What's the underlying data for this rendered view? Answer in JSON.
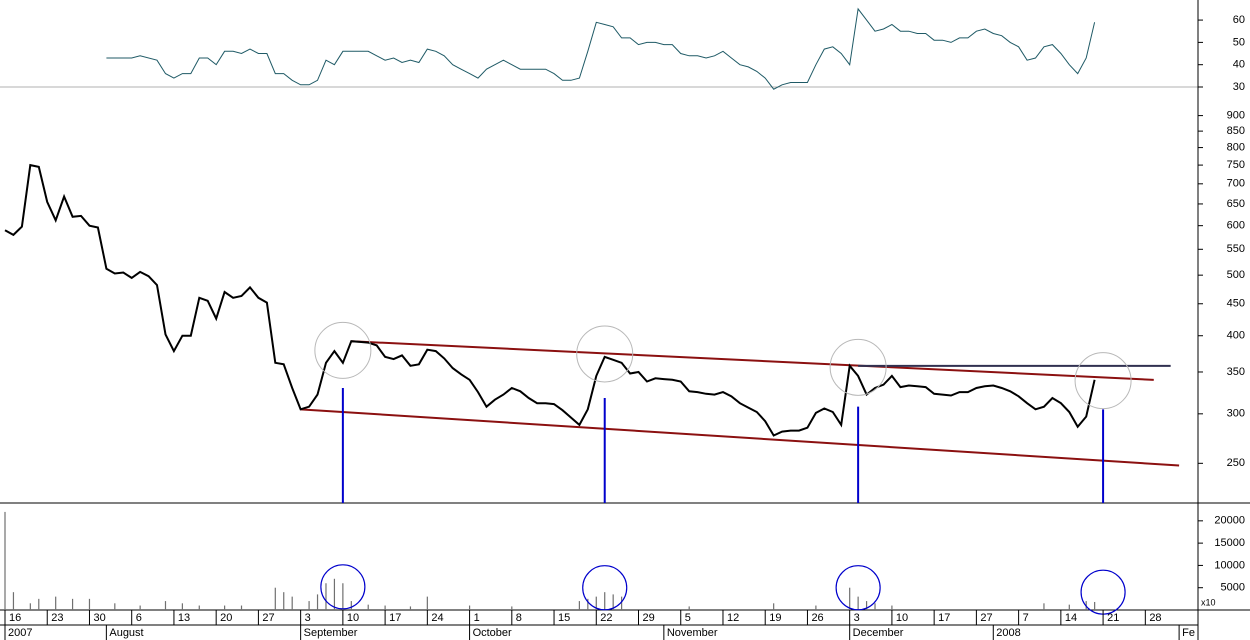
{
  "chart_data": [
    {
      "type": "line",
      "color": "#1f5a66",
      "xlim": [
        "2007-07-16",
        "2008-02-05"
      ],
      "ylim": [
        30,
        69
      ],
      "yticks": [
        30,
        40,
        50,
        60
      ],
      "x": [
        "2007-08-01",
        "2007-08-06",
        "2007-08-07",
        "2007-08-09",
        "2007-08-10",
        "2007-08-13",
        "2007-08-14",
        "2007-08-15",
        "2007-08-16",
        "2007-08-17",
        "2007-08-20",
        "2007-08-21",
        "2007-08-22",
        "2007-08-23",
        "2007-08-24",
        "2007-08-27",
        "2007-08-28",
        "2007-08-29",
        "2007-08-30",
        "2007-08-31",
        "2007-09-03",
        "2007-09-04",
        "2007-09-05",
        "2007-09-06",
        "2007-09-07",
        "2007-09-10",
        "2007-09-11",
        "2007-09-13",
        "2007-09-14",
        "2007-09-17",
        "2007-09-18",
        "2007-09-19",
        "2007-09-20",
        "2007-09-21",
        "2007-09-24",
        "2007-09-25",
        "2007-09-26",
        "2007-09-27",
        "2007-09-28",
        "2007-10-01",
        "2007-10-02",
        "2007-10-03",
        "2007-10-04",
        "2007-10-05",
        "2007-10-08",
        "2007-10-09",
        "2007-10-11",
        "2007-10-12",
        "2007-10-15",
        "2007-10-16",
        "2007-10-17",
        "2007-10-18",
        "2007-10-19",
        "2007-10-22",
        "2007-10-23",
        "2007-10-24",
        "2007-10-25",
        "2007-10-26",
        "2007-10-29",
        "2007-10-30",
        "2007-10-31",
        "2007-11-01",
        "2007-11-02",
        "2007-11-05",
        "2007-11-06",
        "2007-11-07",
        "2007-11-08",
        "2007-11-09",
        "2007-11-12",
        "2007-11-13",
        "2007-11-14",
        "2007-11-15",
        "2007-11-16",
        "2007-11-19",
        "2007-11-20",
        "2007-11-21",
        "2007-11-22",
        "2007-11-23",
        "2007-11-26",
        "2007-11-27",
        "2007-11-28",
        "2007-11-29",
        "2007-11-30",
        "2007-12-03",
        "2007-12-04",
        "2007-12-05",
        "2007-12-06",
        "2007-12-07",
        "2007-12-10",
        "2007-12-11",
        "2007-12-12",
        "2007-12-13",
        "2007-12-14",
        "2007-12-17",
        "2007-12-18",
        "2007-12-19",
        "2007-12-20",
        "2007-12-21",
        "2007-12-27",
        "2007-12-28",
        "2008-01-02",
        "2008-01-03",
        "2008-01-04",
        "2008-01-07",
        "2008-01-08",
        "2008-01-09",
        "2008-01-10",
        "2008-01-11",
        "2008-01-14",
        "2008-01-15",
        "2008-01-16",
        "2008-01-17",
        "2008-01-18"
      ],
      "values": [
        43,
        43,
        44,
        42,
        36,
        34,
        36,
        36,
        43,
        43,
        40,
        46,
        46,
        45,
        47,
        45,
        45,
        36,
        36,
        33,
        31,
        31,
        33,
        42,
        40,
        46,
        46,
        46,
        44,
        42,
        43,
        41,
        42,
        41,
        47,
        46,
        44,
        40,
        38,
        36,
        34,
        38,
        40,
        42,
        40,
        38,
        38,
        38,
        36,
        33,
        33,
        34,
        46,
        59,
        58,
        57,
        52,
        52,
        49,
        50,
        50,
        49,
        49,
        45,
        44,
        44,
        43,
        44,
        46,
        43,
        40,
        39,
        37,
        34,
        29,
        31,
        32,
        32,
        32,
        40,
        47,
        48,
        45,
        40,
        65,
        60,
        55,
        56,
        58,
        55,
        55,
        54,
        54,
        51,
        51,
        50,
        52,
        52,
        55,
        56,
        54,
        53,
        50,
        48,
        42,
        43,
        48,
        49,
        45,
        40,
        36,
        43,
        59
      ]
    },
    {
      "type": "line",
      "color": "#000000",
      "log_scale": true,
      "xlim": [
        "2007-07-16",
        "2008-02-05"
      ],
      "ylim": [
        216,
        1000
      ],
      "yticks": [
        250,
        300,
        350,
        400,
        450,
        500,
        550,
        600,
        650,
        700,
        750,
        800,
        850,
        900
      ],
      "x": [
        "2007-07-16",
        "2007-07-17",
        "2007-07-18",
        "2007-07-19",
        "2007-07-20",
        "2007-07-23",
        "2007-07-24",
        "2007-07-25",
        "2007-07-26",
        "2007-07-27",
        "2007-07-30",
        "2007-07-31",
        "2007-08-01",
        "2007-08-02",
        "2007-08-03",
        "2007-08-06",
        "2007-08-07",
        "2007-08-08",
        "2007-08-09",
        "2007-08-10",
        "2007-08-13",
        "2007-08-14",
        "2007-08-15",
        "2007-08-16",
        "2007-08-17",
        "2007-08-20",
        "2007-08-21",
        "2007-08-22",
        "2007-08-23",
        "2007-08-24",
        "2007-08-27",
        "2007-08-28",
        "2007-08-29",
        "2007-08-30",
        "2007-08-31",
        "2007-09-03",
        "2007-09-04",
        "2007-09-05",
        "2007-09-06",
        "2007-09-07",
        "2007-09-10",
        "2007-09-11",
        "2007-09-12",
        "2007-09-13",
        "2007-09-14",
        "2007-09-17",
        "2007-09-18",
        "2007-09-19",
        "2007-09-20",
        "2007-09-21",
        "2007-09-24",
        "2007-09-25",
        "2007-09-26",
        "2007-09-27",
        "2007-09-28",
        "2007-10-01",
        "2007-10-02",
        "2007-10-03",
        "2007-10-04",
        "2007-10-05",
        "2007-10-08",
        "2007-10-09",
        "2007-10-10",
        "2007-10-11",
        "2007-10-12",
        "2007-10-15",
        "2007-10-16",
        "2007-10-17",
        "2007-10-18",
        "2007-10-19",
        "2007-10-22",
        "2007-10-23",
        "2007-10-24",
        "2007-10-25",
        "2007-10-26",
        "2007-10-29",
        "2007-10-30",
        "2007-10-31",
        "2007-11-01",
        "2007-11-02",
        "2007-11-05",
        "2007-11-06",
        "2007-11-07",
        "2007-11-08",
        "2007-11-09",
        "2007-11-12",
        "2007-11-13",
        "2007-11-14",
        "2007-11-15",
        "2007-11-16",
        "2007-11-19",
        "2007-11-20",
        "2007-11-21",
        "2007-11-22",
        "2007-11-23",
        "2007-11-26",
        "2007-11-27",
        "2007-11-28",
        "2007-11-29",
        "2007-11-30",
        "2007-12-03",
        "2007-12-04",
        "2007-12-05",
        "2007-12-06",
        "2007-12-07",
        "2007-12-10",
        "2007-12-11",
        "2007-12-12",
        "2007-12-13",
        "2007-12-14",
        "2007-12-17",
        "2007-12-18",
        "2007-12-19",
        "2007-12-20",
        "2007-12-21",
        "2007-12-27",
        "2007-12-28",
        "2008-01-02",
        "2008-01-03",
        "2008-01-04",
        "2008-01-07",
        "2008-01-08",
        "2008-01-09",
        "2008-01-10",
        "2008-01-11",
        "2008-01-14",
        "2008-01-15",
        "2008-01-16",
        "2008-01-17",
        "2008-01-18"
      ],
      "values": [
        590,
        580,
        598,
        750,
        745,
        655,
        612,
        668,
        620,
        622,
        600,
        596,
        512,
        503,
        505,
        495,
        506,
        498,
        482,
        402,
        378,
        400,
        400,
        460,
        455,
        426,
        470,
        460,
        463,
        478,
        460,
        452,
        362,
        360,
        330,
        305,
        308,
        322,
        362,
        378,
        362,
        392,
        391,
        390,
        386,
        370,
        367,
        372,
        358,
        360,
        380,
        378,
        368,
        355,
        347,
        340,
        325,
        308,
        316,
        322,
        330,
        326,
        318,
        312,
        312,
        311,
        304,
        296,
        288,
        305,
        345,
        370,
        366,
        362,
        348,
        350,
        338,
        342,
        341,
        340,
        338,
        326,
        325,
        323,
        322,
        325,
        320,
        312,
        307,
        302,
        292,
        277,
        281,
        282,
        282,
        285,
        301,
        306,
        302,
        288,
        358,
        345,
        322,
        330,
        334,
        345,
        331,
        333,
        332,
        331,
        323,
        322,
        321,
        325,
        325,
        330,
        332,
        333,
        330,
        326,
        320,
        312,
        305,
        308,
        318,
        312,
        302,
        286,
        297,
        340
      ],
      "trendlines": [
        {
          "x": [
            "2007-09-11",
            "2008-01-29"
          ],
          "y": [
            392,
            340
          ],
          "color": "#8b1010"
        },
        {
          "x": [
            "2007-09-03",
            "2008-02-01"
          ],
          "y": [
            305,
            248
          ],
          "color": "#8b1010"
        },
        {
          "x": [
            "2007-12-04",
            "2008-01-31"
          ],
          "y": [
            358,
            358
          ],
          "color": "#303050"
        }
      ],
      "signal_lines": [
        {
          "x": "2007-09-10",
          "y": 330
        },
        {
          "x": "2007-10-23",
          "y": 318
        },
        {
          "x": "2007-12-04",
          "y": 308
        },
        {
          "x": "2008-01-21",
          "y": 305
        }
      ],
      "signal_color": "#0000cc",
      "circles": [
        {
          "x": "2007-09-10",
          "y": 379
        },
        {
          "x": "2007-10-23",
          "y": 374
        },
        {
          "x": "2007-12-04",
          "y": 356
        },
        {
          "x": "2008-01-21",
          "y": 339
        }
      ]
    },
    {
      "type": "bar",
      "color": "#707070",
      "xlim": [
        "2007-07-16",
        "2008-02-05"
      ],
      "ylim": [
        0,
        24000
      ],
      "yticks": [
        5000,
        10000,
        15000,
        20000
      ],
      "unit_label": "x10",
      "x": [
        "2007-07-16",
        "2007-07-17",
        "2007-07-19",
        "2007-07-20",
        "2007-07-24",
        "2007-07-26",
        "2007-07-30",
        "2007-08-02",
        "2007-08-07",
        "2007-08-10",
        "2007-08-14",
        "2007-08-16",
        "2007-08-21",
        "2007-08-23",
        "2007-08-29",
        "2007-08-30",
        "2007-08-31",
        "2007-09-04",
        "2007-09-05",
        "2007-09-06",
        "2007-09-07",
        "2007-09-10",
        "2007-09-11",
        "2007-09-13",
        "2007-09-17",
        "2007-09-20",
        "2007-09-24",
        "2007-10-01",
        "2007-10-08",
        "2007-10-18",
        "2007-10-19",
        "2007-10-22",
        "2007-10-23",
        "2007-10-24",
        "2007-10-25",
        "2007-11-06",
        "2007-11-20",
        "2007-11-27",
        "2007-12-03",
        "2007-12-04",
        "2007-12-05",
        "2007-12-06",
        "2007-12-10",
        "2008-01-10",
        "2008-01-15",
        "2008-01-17",
        "2008-01-18"
      ],
      "values": [
        22000,
        4000,
        1500,
        2500,
        3000,
        2500,
        2500,
        1500,
        1000,
        2000,
        1500,
        1000,
        1000,
        1000,
        5000,
        4000,
        3000,
        2000,
        3500,
        6000,
        7000,
        6000,
        2000,
        1200,
        1000,
        800,
        3000,
        1000,
        800,
        2000,
        2500,
        3000,
        4000,
        3500,
        3000,
        800,
        1500,
        1000,
        5000,
        3000,
        2000,
        1500,
        1000,
        1500,
        1200,
        2000,
        1800
      ],
      "circles": [
        {
          "x": "2007-09-10",
          "y": 5200
        },
        {
          "x": "2007-10-23",
          "y": 5000
        },
        {
          "x": "2007-12-04",
          "y": 5000
        },
        {
          "x": "2008-01-21",
          "y": 4000
        }
      ],
      "circle_color": "#0000cc",
      "xticks": [
        {
          "value": "2007-07-16",
          "label": "16"
        },
        {
          "value": "2007-07-23",
          "label": "23"
        },
        {
          "value": "2007-07-30",
          "label": "30"
        },
        {
          "value": "2007-08-06",
          "label": "6"
        },
        {
          "value": "2007-08-13",
          "label": "13"
        },
        {
          "value": "2007-08-20",
          "label": "20"
        },
        {
          "value": "2007-08-27",
          "label": "27"
        },
        {
          "value": "2007-09-03",
          "label": "3"
        },
        {
          "value": "2007-09-10",
          "label": "10"
        },
        {
          "value": "2007-09-17",
          "label": "17"
        },
        {
          "value": "2007-09-24",
          "label": "24"
        },
        {
          "value": "2007-10-01",
          "label": "1"
        },
        {
          "value": "2007-10-08",
          "label": "8"
        },
        {
          "value": "2007-10-15",
          "label": "15"
        },
        {
          "value": "2007-10-22",
          "label": "22"
        },
        {
          "value": "2007-10-29",
          "label": "29"
        },
        {
          "value": "2007-11-05",
          "label": "5"
        },
        {
          "value": "2007-11-12",
          "label": "12"
        },
        {
          "value": "2007-11-19",
          "label": "19"
        },
        {
          "value": "2007-11-26",
          "label": "26"
        },
        {
          "value": "2007-12-03",
          "label": "3"
        },
        {
          "value": "2007-12-10",
          "label": "10"
        },
        {
          "value": "2007-12-17",
          "label": "17"
        },
        {
          "value": "2007-12-27",
          "label": "27"
        },
        {
          "value": "2008-01-07",
          "label": "7"
        },
        {
          "value": "2008-01-14",
          "label": "14"
        },
        {
          "value": "2008-01-21",
          "label": "21"
        },
        {
          "value": "2008-01-28",
          "label": "28"
        }
      ],
      "month_ticks": [
        {
          "value": "2007-07-16",
          "label": "2007"
        },
        {
          "value": "2007-08-01",
          "label": "August"
        },
        {
          "value": "2007-09-01",
          "label": "September"
        },
        {
          "value": "2007-10-01",
          "label": "October"
        },
        {
          "value": "2007-11-01",
          "label": "November"
        },
        {
          "value": "2007-12-01",
          "label": "December"
        },
        {
          "value": "2008-01-01",
          "label": "2008"
        },
        {
          "value": "2008-02-01",
          "label": "Fe"
        }
      ]
    }
  ]
}
